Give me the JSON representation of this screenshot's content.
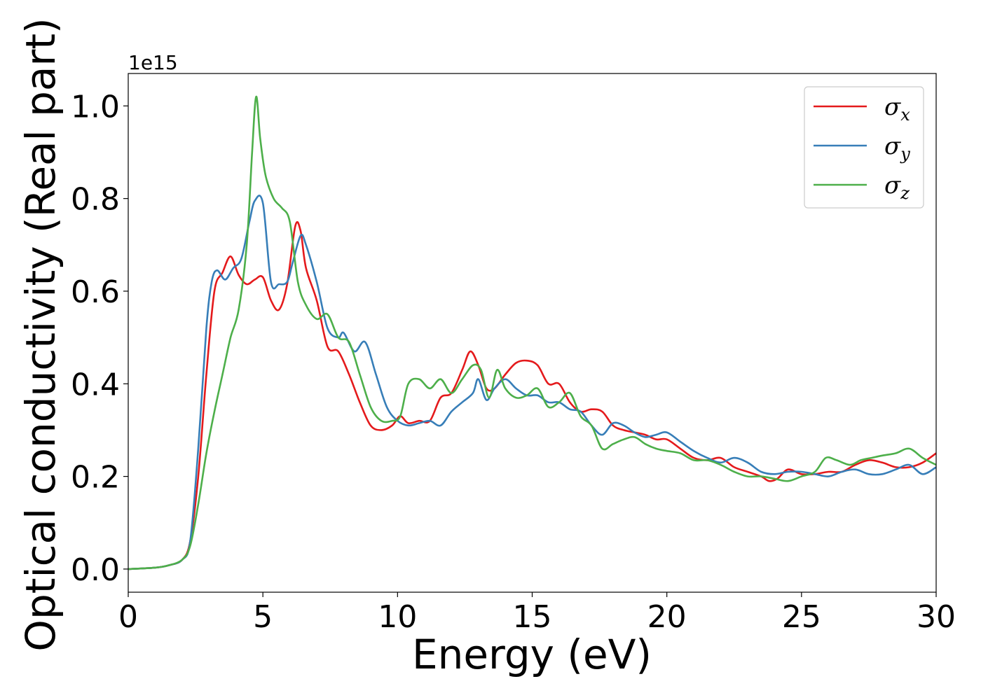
{
  "chart_data": {
    "type": "line",
    "xlabel": "Energy (eV)",
    "ylabel": "Optical conductivity (Real part)",
    "y_offset_label": "1e15",
    "xlim": [
      0,
      30
    ],
    "ylim": [
      -0.05,
      1.07
    ],
    "xticks": [
      0,
      5,
      10,
      15,
      20,
      25,
      30
    ],
    "xtick_labels": [
      "0",
      "5",
      "10",
      "15",
      "20",
      "25",
      "30"
    ],
    "yticks": [
      0.0,
      0.2,
      0.4,
      0.6,
      0.8,
      1.0
    ],
    "ytick_labels": [
      "0.0",
      "0.2",
      "0.4",
      "0.6",
      "0.8",
      "1.0"
    ],
    "grid": false,
    "legend_position": "top-right",
    "series": [
      {
        "name": "σx",
        "symbol": "σ",
        "subscript": "x",
        "color": "#e41a1c",
        "x": [
          0,
          1,
          1.5,
          2,
          2.3,
          2.6,
          2.9,
          3.2,
          3.5,
          3.8,
          4.1,
          4.4,
          4.7,
          5.0,
          5.3,
          5.6,
          5.9,
          6.2,
          6.4,
          6.6,
          7.0,
          7.4,
          7.8,
          8.2,
          8.6,
          9.0,
          9.4,
          9.8,
          10.1,
          10.4,
          10.8,
          11.2,
          11.6,
          12.0,
          12.4,
          12.7,
          13.0,
          13.3,
          13.6,
          14.0,
          14.4,
          14.8,
          15.2,
          15.6,
          16.0,
          16.4,
          16.8,
          17.2,
          17.6,
          18.0,
          18.4,
          18.8,
          19.2,
          19.6,
          20.0,
          20.5,
          21.0,
          21.5,
          22.0,
          22.5,
          23.0,
          23.5,
          23.8,
          24.1,
          24.5,
          25.0,
          25.5,
          26.0,
          26.5,
          27.0,
          27.5,
          28.0,
          28.5,
          29.0,
          29.5,
          30.0
        ],
        "y": [
          0.0,
          0.003,
          0.008,
          0.02,
          0.06,
          0.2,
          0.42,
          0.6,
          0.64,
          0.675,
          0.635,
          0.615,
          0.625,
          0.63,
          0.58,
          0.56,
          0.615,
          0.74,
          0.73,
          0.65,
          0.58,
          0.48,
          0.47,
          0.42,
          0.36,
          0.31,
          0.3,
          0.31,
          0.33,
          0.315,
          0.32,
          0.32,
          0.37,
          0.38,
          0.43,
          0.47,
          0.44,
          0.39,
          0.39,
          0.42,
          0.445,
          0.45,
          0.44,
          0.4,
          0.4,
          0.36,
          0.34,
          0.345,
          0.34,
          0.31,
          0.3,
          0.295,
          0.29,
          0.28,
          0.28,
          0.26,
          0.24,
          0.235,
          0.24,
          0.22,
          0.21,
          0.2,
          0.19,
          0.195,
          0.215,
          0.205,
          0.205,
          0.21,
          0.21,
          0.225,
          0.235,
          0.23,
          0.22,
          0.22,
          0.23,
          0.25
        ]
      },
      {
        "name": "σy",
        "symbol": "σ",
        "subscript": "y",
        "color": "#377eb8",
        "x": [
          0,
          1,
          1.5,
          2,
          2.3,
          2.6,
          2.9,
          3.1,
          3.3,
          3.6,
          3.9,
          4.2,
          4.5,
          4.7,
          5.0,
          5.3,
          5.6,
          5.9,
          6.1,
          6.4,
          6.6,
          7.0,
          7.4,
          7.8,
          8.0,
          8.4,
          8.8,
          9.2,
          9.6,
          10.0,
          10.4,
          10.8,
          11.2,
          11.6,
          12.0,
          12.4,
          12.8,
          13.0,
          13.3,
          13.6,
          14.0,
          14.4,
          14.8,
          15.2,
          15.6,
          16.0,
          16.4,
          16.8,
          17.2,
          17.6,
          18.0,
          18.4,
          18.8,
          19.2,
          19.6,
          20.0,
          20.5,
          21.0,
          21.5,
          22.0,
          22.5,
          23.0,
          23.5,
          24.0,
          24.5,
          25.0,
          25.5,
          26.0,
          26.5,
          27.0,
          27.5,
          28.0,
          28.5,
          29.0,
          29.5,
          30.0
        ],
        "y": [
          0.0,
          0.003,
          0.008,
          0.02,
          0.06,
          0.26,
          0.52,
          0.62,
          0.645,
          0.625,
          0.65,
          0.67,
          0.75,
          0.795,
          0.79,
          0.62,
          0.615,
          0.62,
          0.66,
          0.72,
          0.7,
          0.62,
          0.52,
          0.5,
          0.51,
          0.47,
          0.49,
          0.42,
          0.35,
          0.32,
          0.31,
          0.315,
          0.32,
          0.31,
          0.34,
          0.36,
          0.38,
          0.41,
          0.365,
          0.39,
          0.41,
          0.39,
          0.375,
          0.375,
          0.36,
          0.36,
          0.345,
          0.34,
          0.31,
          0.29,
          0.315,
          0.31,
          0.295,
          0.285,
          0.29,
          0.295,
          0.275,
          0.255,
          0.24,
          0.23,
          0.24,
          0.23,
          0.21,
          0.205,
          0.21,
          0.21,
          0.205,
          0.2,
          0.21,
          0.215,
          0.205,
          0.205,
          0.215,
          0.225,
          0.205,
          0.22
        ]
      },
      {
        "name": "σz",
        "symbol": "σ",
        "subscript": "z",
        "color": "#4daf4a",
        "x": [
          0,
          1,
          1.5,
          2,
          2.3,
          2.6,
          2.9,
          3.2,
          3.5,
          3.8,
          4.1,
          4.4,
          4.6,
          4.75,
          4.9,
          5.1,
          5.4,
          5.7,
          6.0,
          6.3,
          6.6,
          7.0,
          7.4,
          7.8,
          8.2,
          8.6,
          9.0,
          9.4,
          9.8,
          10.1,
          10.4,
          10.8,
          11.2,
          11.6,
          12.0,
          12.4,
          12.8,
          13.1,
          13.4,
          13.7,
          14.0,
          14.4,
          14.8,
          15.2,
          15.6,
          16.0,
          16.4,
          16.8,
          17.2,
          17.6,
          18.0,
          18.4,
          18.8,
          19.2,
          19.6,
          20.0,
          20.5,
          21.0,
          21.5,
          22.0,
          22.5,
          23.0,
          23.5,
          24.0,
          24.5,
          25.0,
          25.5,
          25.9,
          26.3,
          26.8,
          27.2,
          27.6,
          28.0,
          28.5,
          29.0,
          29.5,
          30.0
        ],
        "y": [
          0.0,
          0.003,
          0.008,
          0.02,
          0.05,
          0.14,
          0.25,
          0.34,
          0.42,
          0.5,
          0.56,
          0.7,
          0.9,
          1.02,
          0.93,
          0.85,
          0.8,
          0.78,
          0.75,
          0.62,
          0.57,
          0.54,
          0.55,
          0.5,
          0.49,
          0.42,
          0.35,
          0.32,
          0.32,
          0.33,
          0.4,
          0.41,
          0.39,
          0.41,
          0.38,
          0.41,
          0.44,
          0.43,
          0.37,
          0.43,
          0.39,
          0.37,
          0.375,
          0.39,
          0.35,
          0.36,
          0.38,
          0.33,
          0.31,
          0.26,
          0.27,
          0.28,
          0.285,
          0.27,
          0.26,
          0.255,
          0.25,
          0.235,
          0.235,
          0.225,
          0.21,
          0.2,
          0.2,
          0.195,
          0.19,
          0.2,
          0.21,
          0.24,
          0.235,
          0.225,
          0.235,
          0.24,
          0.245,
          0.25,
          0.26,
          0.24,
          0.225
        ]
      }
    ]
  }
}
